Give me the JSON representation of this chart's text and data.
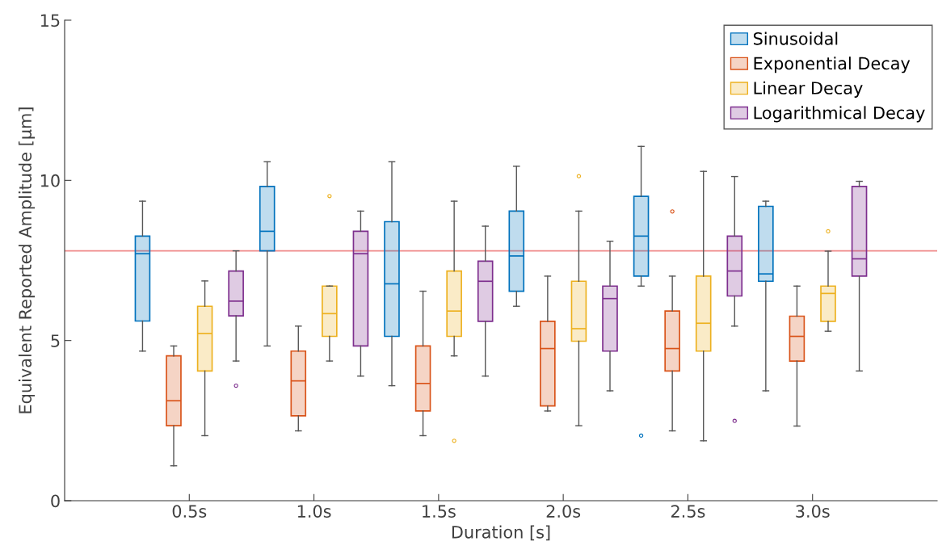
{
  "chart_data": {
    "type": "box",
    "xlabel": "Duration [s]",
    "ylabel": "Equivalent Reported Amplitude [µm]",
    "categories": [
      "0.5s",
      "1.0s",
      "1.5s",
      "2.0s",
      "2.5s",
      "3.0s"
    ],
    "ylim": [
      0,
      15
    ],
    "yticks": [
      0,
      5,
      10,
      15
    ],
    "grid": false,
    "legend": "top right",
    "ref_lines": [
      {
        "axis": "y",
        "value": 7.8,
        "color": "#ef8a8a"
      }
    ],
    "series": [
      {
        "name": "Sinusoidal",
        "color": "#0072bd",
        "boxes": [
          {
            "low": 4.67,
            "q1": 5.61,
            "median": 7.71,
            "q3": 8.26,
            "high": 9.35
          },
          {
            "low": 4.83,
            "q1": 7.8,
            "median": 8.41,
            "q3": 9.81,
            "high": 10.58
          },
          {
            "low": 3.59,
            "q1": 5.13,
            "median": 6.77,
            "q3": 8.71,
            "high": 10.58
          },
          {
            "low": 6.07,
            "q1": 6.54,
            "median": 7.64,
            "q3": 9.04,
            "high": 10.44
          },
          {
            "low": 6.7,
            "q1": 7.01,
            "median": 8.26,
            "q3": 9.5,
            "high": 11.06,
            "outliers": [
              2.03
            ]
          },
          {
            "low": 3.43,
            "q1": 6.85,
            "median": 7.08,
            "q3": 9.19,
            "high": 9.35
          }
        ]
      },
      {
        "name": "Exponential Decay",
        "color": "#d95319",
        "boxes": [
          {
            "low": 1.09,
            "q1": 2.34,
            "median": 3.12,
            "q3": 4.52,
            "high": 4.83
          },
          {
            "low": 2.18,
            "q1": 2.65,
            "median": 3.74,
            "q3": 4.67,
            "high": 5.45
          },
          {
            "low": 2.03,
            "q1": 2.8,
            "median": 3.66,
            "q3": 4.83,
            "high": 6.54
          },
          {
            "low": 2.8,
            "q1": 2.96,
            "median": 4.75,
            "q3": 5.6,
            "high": 7.01
          },
          {
            "low": 2.18,
            "q1": 4.05,
            "median": 4.75,
            "q3": 5.92,
            "high": 7.01,
            "outliers": [
              9.03
            ]
          },
          {
            "low": 2.33,
            "q1": 4.36,
            "median": 5.13,
            "q3": 5.76,
            "high": 6.7
          }
        ]
      },
      {
        "name": "Linear Decay",
        "color": "#edb120",
        "boxes": [
          {
            "low": 2.03,
            "q1": 4.05,
            "median": 5.22,
            "q3": 6.07,
            "high": 6.86
          },
          {
            "low": 4.36,
            "q1": 5.13,
            "median": 5.84,
            "q3": 6.7,
            "high": 6.7,
            "outliers": [
              9.51
            ]
          },
          {
            "low": 4.52,
            "q1": 5.13,
            "median": 5.92,
            "q3": 7.17,
            "high": 9.35,
            "outliers": [
              1.87
            ]
          },
          {
            "low": 2.34,
            "q1": 4.98,
            "median": 5.37,
            "q3": 6.85,
            "high": 9.04,
            "outliers": [
              10.13
            ]
          },
          {
            "low": 1.87,
            "q1": 4.67,
            "median": 5.54,
            "q3": 7.01,
            "high": 10.28
          },
          {
            "low": 5.29,
            "q1": 5.6,
            "median": 6.47,
            "q3": 6.7,
            "high": 7.79,
            "outliers": [
              8.41
            ]
          }
        ]
      },
      {
        "name": "Logarithmical Decay",
        "color": "#7e2f8e",
        "boxes": [
          {
            "low": 4.36,
            "q1": 5.77,
            "median": 6.23,
            "q3": 7.17,
            "high": 7.8,
            "outliers": [
              3.59
            ]
          },
          {
            "low": 3.89,
            "q1": 4.83,
            "median": 7.71,
            "q3": 8.41,
            "high": 9.04
          },
          {
            "low": 3.89,
            "q1": 5.6,
            "median": 6.85,
            "q3": 7.48,
            "high": 8.57
          },
          {
            "low": 3.43,
            "q1": 4.67,
            "median": 6.31,
            "q3": 6.7,
            "high": 8.1
          },
          {
            "low": 5.45,
            "q1": 6.39,
            "median": 7.17,
            "q3": 8.26,
            "high": 10.12,
            "outliers": [
              2.49
            ]
          },
          {
            "low": 4.05,
            "q1": 7.01,
            "median": 7.55,
            "q3": 9.81,
            "high": 9.97
          }
        ]
      }
    ]
  }
}
